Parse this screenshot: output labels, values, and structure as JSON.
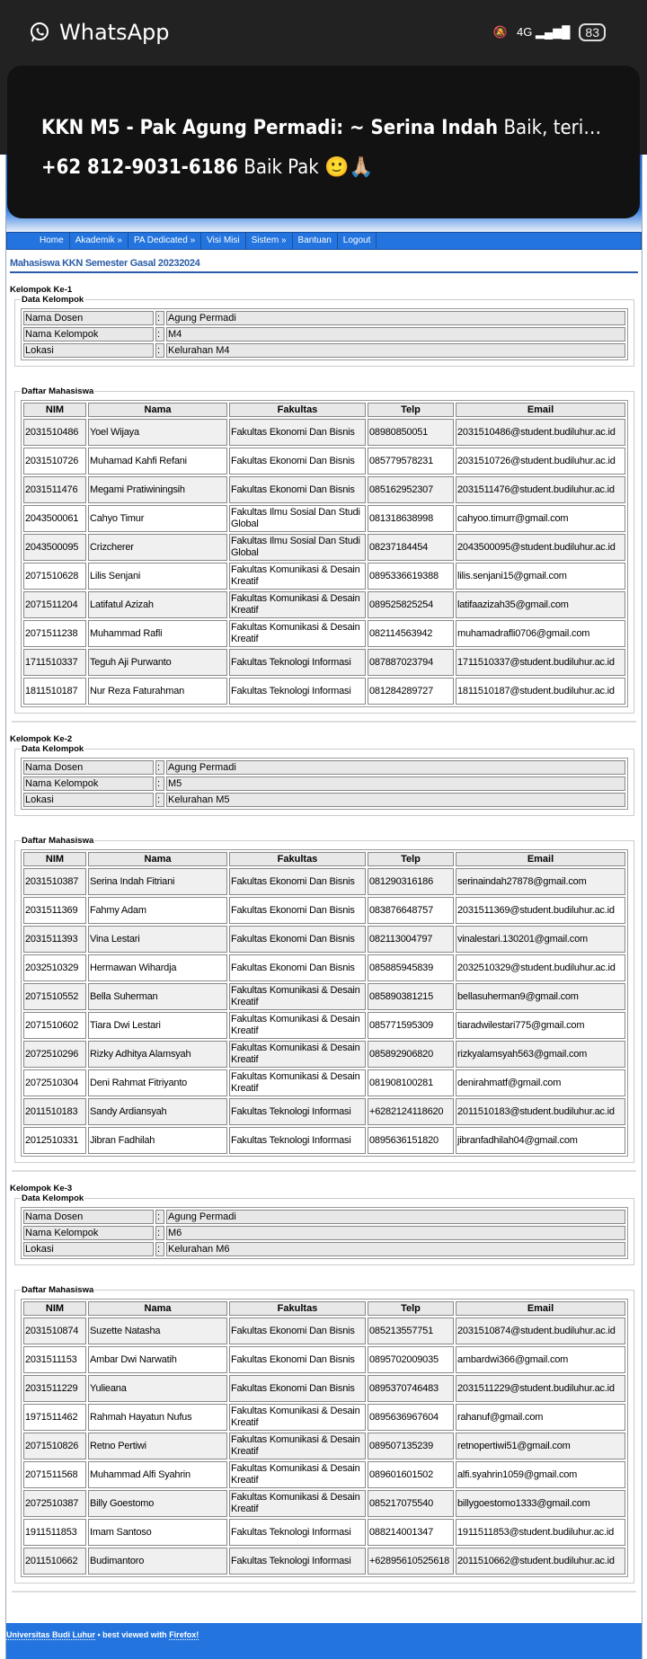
{
  "status_bar": {
    "app_name": "WhatsApp",
    "network": "4G",
    "battery": "83",
    "icons": [
      "whatsapp-icon",
      "mute-icon",
      "signal-icon",
      "battery-icon"
    ]
  },
  "notification": {
    "sender": "KKN M5 - Pak Agung Permadi: ~ Serina Indah",
    "message": "Baik, teri…",
    "line2_sender": "+62 812-9031-6186",
    "line2_message": "Baik Pak 🙂🙏🏼"
  },
  "nav": [
    "Home",
    "Akademik »",
    "PA Dedicated »",
    "Visi Misi",
    "Sistem »",
    "Bantuan",
    "Logout"
  ],
  "page_title": "Mahasiswa KKN Semester Gasal 20232024",
  "labels": {
    "data_kelompok": "Data Kelompok",
    "daftar_mahasiswa": "Daftar Mahasiswa",
    "nama_dosen": "Nama Dosen",
    "nama_kelompok": "Nama Kelompok",
    "lokasi": "Lokasi",
    "colon": ":"
  },
  "columns": [
    "NIM",
    "Nama",
    "Fakultas",
    "Telp",
    "Email"
  ],
  "groups": [
    {
      "title": "Kelompok Ke-1",
      "dosen": "Agung Permadi",
      "kelompok": "M4",
      "lokasi": "Kelurahan M4",
      "students": [
        [
          "2031510486",
          "Yoel Wijaya",
          "Fakultas Ekonomi Dan Bisnis",
          "08980850051",
          "2031510486@student.budiluhur.ac.id"
        ],
        [
          "2031510726",
          "Muhamad Kahfi Refani",
          "Fakultas Ekonomi Dan Bisnis",
          "085779578231",
          "2031510726@student.budiluhur.ac.id"
        ],
        [
          "2031511476",
          "Megami Pratiwiningsih",
          "Fakultas Ekonomi Dan Bisnis",
          "085162952307",
          "2031511476@student.budiluhur.ac.id"
        ],
        [
          "2043500061",
          "Cahyo Timur",
          "Fakultas Ilmu Sosial Dan Studi Global",
          "081318638998",
          "cahyoo.timurr@gmail.com"
        ],
        [
          "2043500095",
          "Crizcherer",
          "Fakultas Ilmu Sosial Dan Studi Global",
          "08237184454",
          "2043500095@student.budiluhur.ac.id"
        ],
        [
          "2071510628",
          "Lilis Senjani",
          "Fakultas Komunikasi & Desain Kreatif",
          "0895336619388",
          "lilis.senjani15@gmail.com"
        ],
        [
          "2071511204",
          "Latifatul Azizah",
          "Fakultas Komunikasi & Desain Kreatif",
          "089525825254",
          "latifaazizah35@gmail.com"
        ],
        [
          "2071511238",
          "Muhammad Rafli",
          "Fakultas Komunikasi & Desain Kreatif",
          "082114563942",
          "muhamadrafli0706@gmail.com"
        ],
        [
          "1711510337",
          "Teguh Aji Purwanto",
          "Fakultas Teknologi Informasi",
          "087887023794",
          "1711510337@student.budiluhur.ac.id"
        ],
        [
          "1811510187",
          "Nur Reza Faturahman",
          "Fakultas Teknologi Informasi",
          "081284289727",
          "1811510187@student.budiluhur.ac.id"
        ]
      ]
    },
    {
      "title": "Kelompok Ke-2",
      "dosen": "Agung Permadi",
      "kelompok": "M5",
      "lokasi": "Kelurahan M5",
      "students": [
        [
          "2031510387",
          "Serina Indah Fitriani",
          "Fakultas Ekonomi Dan Bisnis",
          "081290316186",
          "serinaindah27878@gmail.com"
        ],
        [
          "2031511369",
          "Fahmy Adam",
          "Fakultas Ekonomi Dan Bisnis",
          "083876648757",
          "2031511369@student.budiluhur.ac.id"
        ],
        [
          "2031511393",
          "Vina Lestari",
          "Fakultas Ekonomi Dan Bisnis",
          "082113004797",
          "vinalestari.130201@gmail.com"
        ],
        [
          "2032510329",
          "Hermawan Wihardja",
          "Fakultas Ekonomi Dan Bisnis",
          "085885945839",
          "2032510329@student.budiluhur.ac.id"
        ],
        [
          "2071510552",
          "Bella Suherman",
          "Fakultas Komunikasi & Desain Kreatif",
          "085890381215",
          "bellasuherman9@gmail.com"
        ],
        [
          "2071510602",
          "Tiara Dwi Lestari",
          "Fakultas Komunikasi & Desain Kreatif",
          "085771595309",
          "tiaradwilestari775@gmail.com"
        ],
        [
          "2072510296",
          "Rizky Adhitya Alamsyah",
          "Fakultas Komunikasi & Desain Kreatif",
          "085892906820",
          "rizkyalamsyah563@gmail.com"
        ],
        [
          "2072510304",
          "Deni Rahmat Fitriyanto",
          "Fakultas Komunikasi & Desain Kreatif",
          "081908100281",
          "denirahmatf@gmail.com"
        ],
        [
          "2011510183",
          "Sandy Ardiansyah",
          "Fakultas Teknologi Informasi",
          "+6282124118620",
          "2011510183@student.budiluhur.ac.id"
        ],
        [
          "2012510331",
          "Jibran Fadhilah",
          "Fakultas Teknologi Informasi",
          "0895636151820",
          "jibranfadhilah04@gmail.com"
        ]
      ]
    },
    {
      "title": "Kelompok Ke-3",
      "dosen": "Agung Permadi",
      "kelompok": "M6",
      "lokasi": "Kelurahan M6",
      "students": [
        [
          "2031510874",
          "Suzette Natasha",
          "Fakultas Ekonomi Dan Bisnis",
          "085213557751",
          "2031510874@student.budiluhur.ac.id"
        ],
        [
          "2031511153",
          "Ambar Dwi Narwatih",
          "Fakultas Ekonomi Dan Bisnis",
          "0895702009035",
          "ambardwi366@gmail.com"
        ],
        [
          "2031511229",
          "Yulieana",
          "Fakultas Ekonomi Dan Bisnis",
          "0895370746483",
          "2031511229@student.budiluhur.ac.id"
        ],
        [
          "1971511462",
          "Rahmah Hayatun Nufus",
          "Fakultas Komunikasi & Desain Kreatif",
          "0895636967604",
          "rahanuf@gmail.com"
        ],
        [
          "2071510826",
          "Retno Pertiwi",
          "Fakultas Komunikasi & Desain Kreatif",
          "089507135239",
          "retnopertiwi51@gmail.com"
        ],
        [
          "2071511568",
          "Muhammad Alfi Syahrin",
          "Fakultas Komunikasi & Desain Kreatif",
          "089601601502",
          "alfi.syahrin1059@gmail.com"
        ],
        [
          "2072510387",
          "Billy Goestomo",
          "Fakultas Komunikasi & Desain Kreatif",
          "085217075540",
          "billygoestomo1333@gmail.com"
        ],
        [
          "1911511853",
          "Imam Santoso",
          "Fakultas Teknologi Informasi",
          "088214001347",
          "1911511853@student.budiluhur.ac.id"
        ],
        [
          "2011510662",
          "Budimantoro",
          "Fakultas Teknologi Informasi",
          "+62895610525618",
          "2011510662@student.budiluhur.ac.id"
        ]
      ]
    }
  ],
  "footer": {
    "org": "Universitas Budi Luhur",
    "middle": " • best viewed with ",
    "browser": "Firefox!"
  },
  "colors": {
    "nav": "#2374de",
    "title": "#2a5ca8",
    "status_bar": "#222222"
  }
}
